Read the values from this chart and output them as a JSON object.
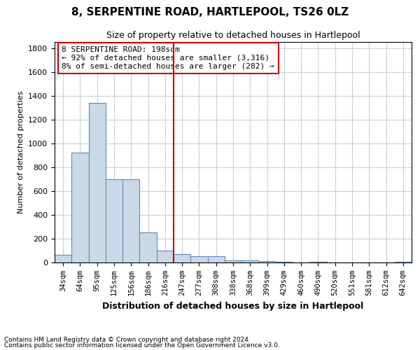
{
  "title": "8, SERPENTINE ROAD, HARTLEPOOL, TS26 0LZ",
  "subtitle": "Size of property relative to detached houses in Hartlepool",
  "xlabel": "Distribution of detached houses by size in Hartlepool",
  "ylabel": "Number of detached properties",
  "footnote1": "Contains HM Land Registry data © Crown copyright and database right 2024.",
  "footnote2": "Contains public sector information licensed under the Open Government Licence v3.0.",
  "bins": [
    "34sqm",
    "64sqm",
    "95sqm",
    "125sqm",
    "156sqm",
    "186sqm",
    "216sqm",
    "247sqm",
    "277sqm",
    "308sqm",
    "338sqm",
    "368sqm",
    "399sqm",
    "429sqm",
    "460sqm",
    "490sqm",
    "520sqm",
    "551sqm",
    "581sqm",
    "612sqm",
    "642sqm"
  ],
  "values": [
    65,
    920,
    1340,
    700,
    700,
    250,
    100,
    70,
    55,
    55,
    20,
    15,
    10,
    5,
    0,
    5,
    0,
    0,
    0,
    0,
    5
  ],
  "bar_color": "#c9d9e8",
  "bar_edge_color": "#5b8db8",
  "vline_x": 6.5,
  "vline_color": "#cc0000",
  "annotation_text": "8 SERPENTINE ROAD: 198sqm\n← 92% of detached houses are smaller (3,316)\n8% of semi-detached houses are larger (282) →",
  "annotation_box_color": "white",
  "annotation_box_edge": "#cc0000",
  "ylim": [
    0,
    1850
  ],
  "yticks": [
    0,
    200,
    400,
    600,
    800,
    1000,
    1200,
    1400,
    1600,
    1800
  ],
  "background_color": "white",
  "grid_color": "#c8d0d8"
}
